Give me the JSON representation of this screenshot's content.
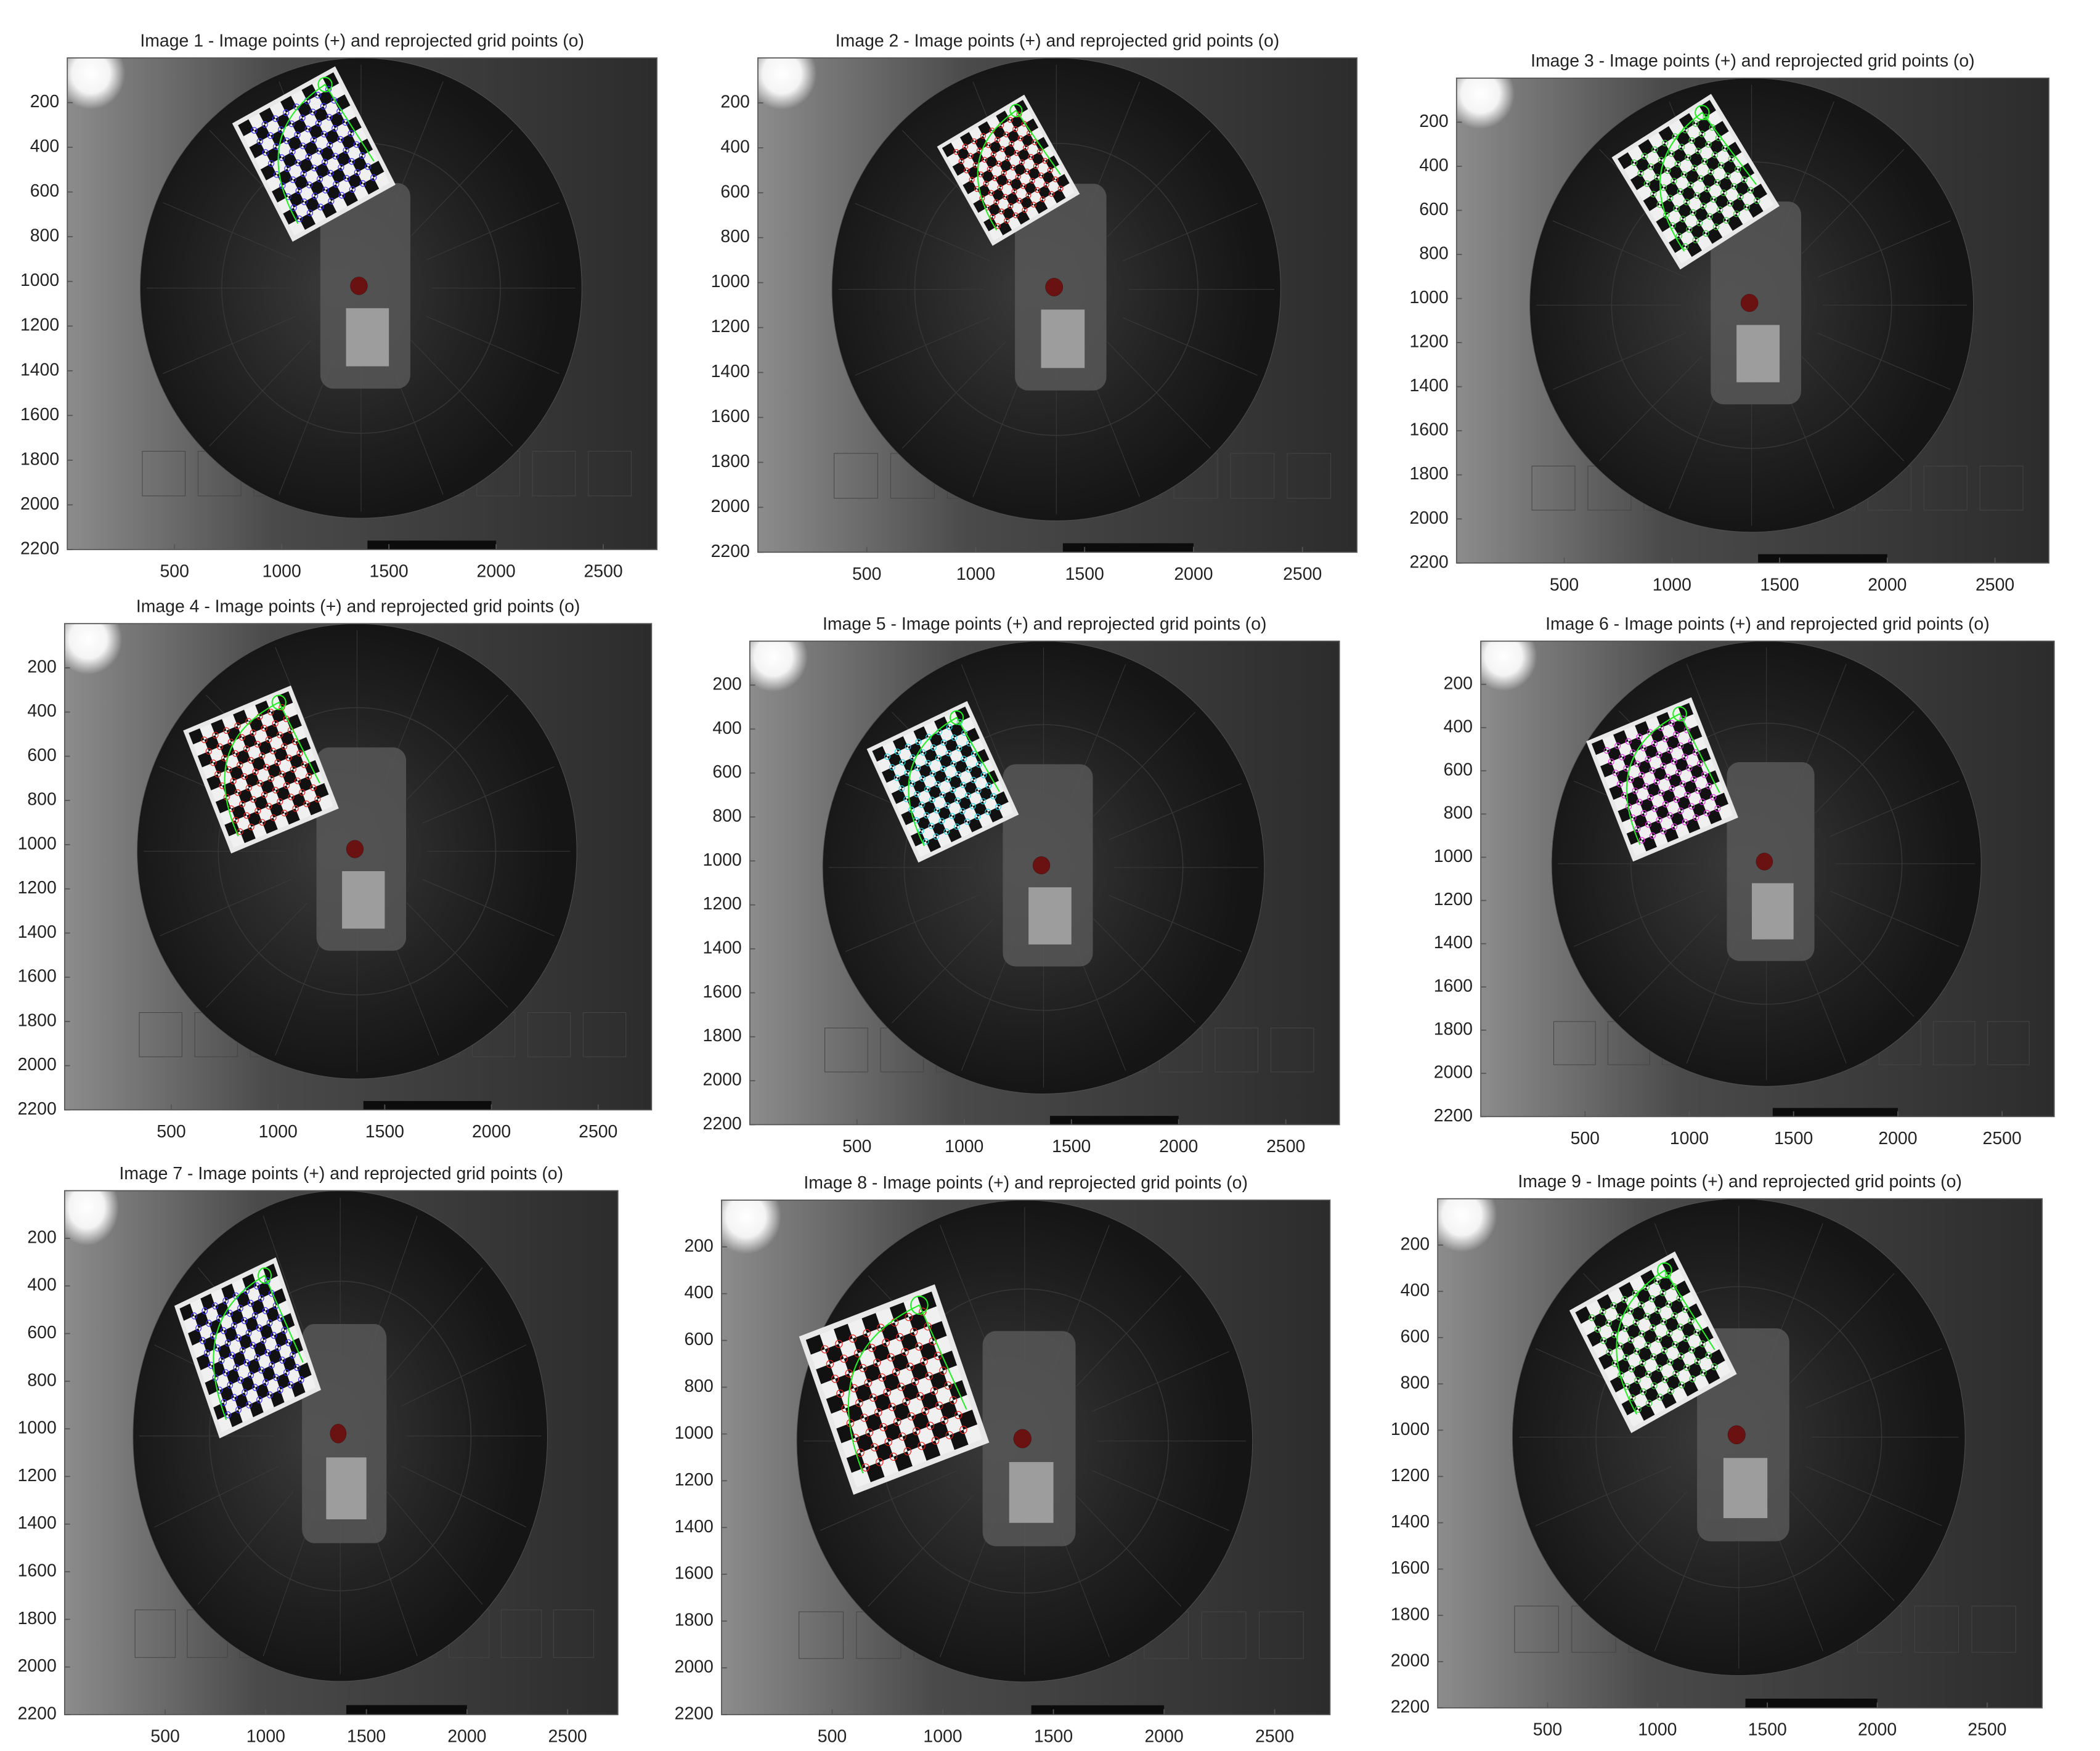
{
  "chart_data": [
    {
      "type": "image",
      "title": "Image 1 - Image points (+) and reprojected grid points (o)",
      "xlim": [
        0,
        2750
      ],
      "ylim": [
        0,
        2200
      ],
      "xticks": [
        500,
        1000,
        1500,
        2000,
        2500
      ],
      "yticks": [
        200,
        400,
        600,
        800,
        1000,
        1200,
        1400,
        1600,
        1800,
        2000,
        2200
      ],
      "point_color": "#3a2cff"
    },
    {
      "type": "image",
      "title": "Image 2 - Image points (+) and reprojected grid points (o)",
      "xlim": [
        0,
        2750
      ],
      "ylim": [
        0,
        2200
      ],
      "xticks": [
        500,
        1000,
        1500,
        2000,
        2500
      ],
      "yticks": [
        200,
        400,
        600,
        800,
        1000,
        1200,
        1400,
        1600,
        1800,
        2000,
        2200
      ],
      "point_color": "#e8201c"
    },
    {
      "type": "image",
      "title": "Image 3 - Image points (+) and reprojected grid points (o)",
      "xlim": [
        0,
        2750
      ],
      "ylim": [
        0,
        2200
      ],
      "xticks": [
        500,
        1000,
        1500,
        2000,
        2500
      ],
      "yticks": [
        200,
        400,
        600,
        800,
        1000,
        1200,
        1400,
        1600,
        1800,
        2000,
        2200
      ],
      "point_color": "#3cd23c"
    },
    {
      "type": "image",
      "title": "Image 4 - Image points (+) and reprojected grid points (o)",
      "xlim": [
        0,
        2750
      ],
      "ylim": [
        0,
        2200
      ],
      "xticks": [
        500,
        1000,
        1500,
        2000,
        2500
      ],
      "yticks": [
        200,
        400,
        600,
        800,
        1000,
        1200,
        1400,
        1600,
        1800,
        2000,
        2200
      ],
      "point_color": "#e8201c"
    },
    {
      "type": "image",
      "title": "Image 5 - Image points (+) and reprojected grid points (o)",
      "xlim": [
        0,
        2750
      ],
      "ylim": [
        0,
        2200
      ],
      "xticks": [
        500,
        1000,
        1500,
        2000,
        2500
      ],
      "yticks": [
        200,
        400,
        600,
        800,
        1000,
        1200,
        1400,
        1600,
        1800,
        2000,
        2200
      ],
      "point_color": "#2ad8e8"
    },
    {
      "type": "image",
      "title": "Image 6 - Image points (+) and reprojected grid points (o)",
      "xlim": [
        0,
        2750
      ],
      "ylim": [
        0,
        2200
      ],
      "xticks": [
        500,
        1000,
        1500,
        2000,
        2500
      ],
      "yticks": [
        200,
        400,
        600,
        800,
        1000,
        1200,
        1400,
        1600,
        1800,
        2000,
        2200
      ],
      "point_color": "#e030e0"
    },
    {
      "type": "image",
      "title": "Image 7 - Image points (+) and reprojected grid points (o)",
      "xlim": [
        0,
        2750
      ],
      "ylim": [
        0,
        2200
      ],
      "xticks": [
        500,
        1000,
        1500,
        2000,
        2500
      ],
      "yticks": [
        200,
        400,
        600,
        800,
        1000,
        1200,
        1400,
        1600,
        1800,
        2000,
        2200
      ],
      "point_color": "#3a2cff"
    },
    {
      "type": "image",
      "title": "Image 8 - Image points (+) and reprojected grid points (o)",
      "xlim": [
        0,
        2750
      ],
      "ylim": [
        0,
        2200
      ],
      "xticks": [
        500,
        1000,
        1500,
        2000,
        2500
      ],
      "yticks": [
        200,
        400,
        600,
        800,
        1000,
        1200,
        1400,
        1600,
        1800,
        2000,
        2200
      ],
      "point_color": "#e8201c"
    },
    {
      "type": "image",
      "title": "Image 9 - Image points (+) and reprojected grid points (o)",
      "xlim": [
        0,
        2750
      ],
      "ylim": [
        0,
        2200
      ],
      "xticks": [
        500,
        1000,
        1500,
        2000,
        2500
      ],
      "yticks": [
        200,
        400,
        600,
        800,
        1000,
        1200,
        1400,
        1600,
        1800,
        2000,
        2200
      ],
      "point_color": "#3cd23c"
    }
  ]
}
